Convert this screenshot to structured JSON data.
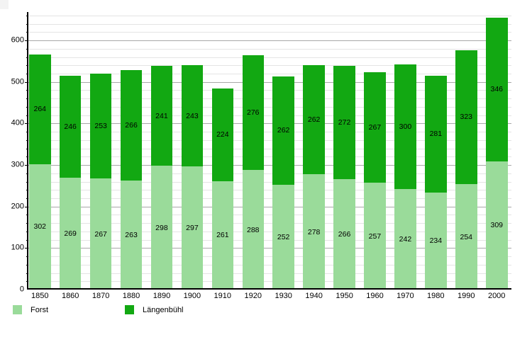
{
  "chart_data": {
    "type": "bar",
    "stacked": true,
    "title": "",
    "xlabel": "",
    "ylabel": "",
    "categories": [
      "1850",
      "1860",
      "1870",
      "1880",
      "1890",
      "1900",
      "1910",
      "1920",
      "1930",
      "1940",
      "1950",
      "1960",
      "1970",
      "1980",
      "1990",
      "2000"
    ],
    "series": [
      {
        "name": "Forst",
        "color": "#9adb9a",
        "values": [
          302,
          269,
          267,
          263,
          298,
          297,
          261,
          288,
          252,
          278,
          266,
          257,
          242,
          234,
          254,
          309
        ]
      },
      {
        "name": "Längenbühl",
        "color": "#12a812",
        "values": [
          264,
          246,
          253,
          266,
          241,
          243,
          224,
          276,
          262,
          262,
          272,
          267,
          300,
          281,
          323,
          346
        ]
      }
    ],
    "totals": [
      566,
      515,
      520,
      529,
      539,
      540,
      485,
      564,
      514,
      540,
      538,
      524,
      542,
      515,
      577,
      655
    ],
    "ylim": [
      0,
      666
    ],
    "y_major_ticks": [
      0,
      100,
      200,
      300,
      400,
      500,
      600
    ],
    "y_minor_step": 20,
    "grid": true,
    "value_labels": true,
    "legend_position": "bottom-left",
    "colors": {
      "grid_major": "#a8a8a8",
      "grid_minor": "#e4e4e4",
      "axis": "#000000",
      "text": "#000000",
      "background": "#ffffff"
    }
  }
}
